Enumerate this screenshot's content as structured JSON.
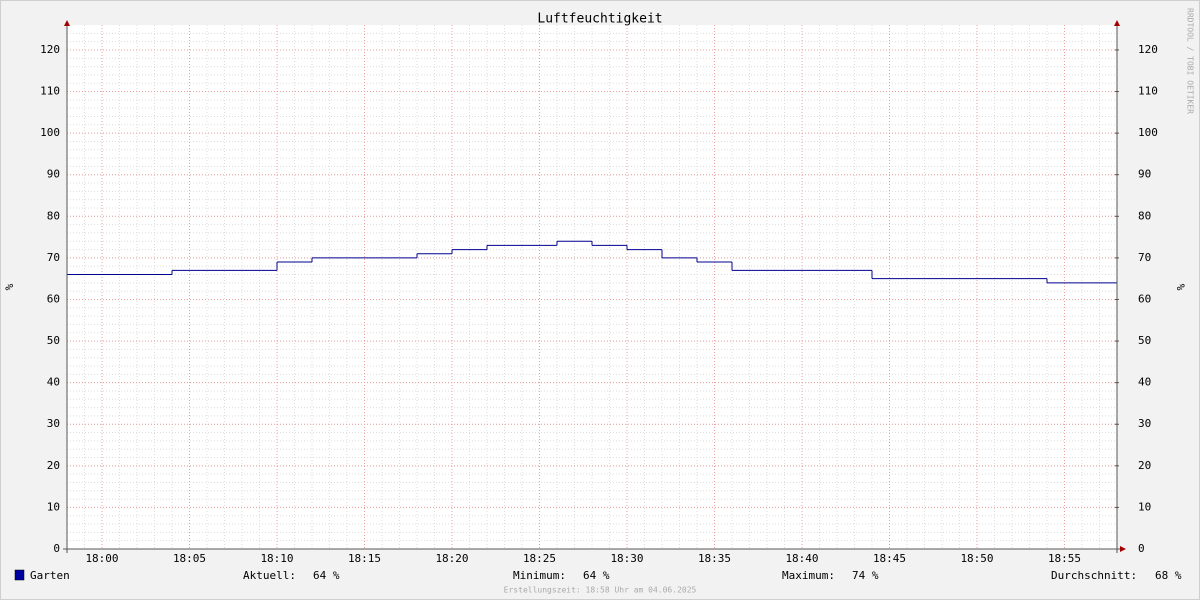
{
  "chart_data": {
    "type": "step",
    "title": "Luftfeuchtigkeit",
    "y_label": "%",
    "y2_label": "%",
    "watermark": "RRDTOOL / TOBI OETIKER",
    "footer": "Erstellungszeit: 18:58 Uhr am 04.06.2025",
    "xlim": [
      "17:58",
      "18:58"
    ],
    "xticks": [
      "18:00",
      "18:05",
      "18:10",
      "18:15",
      "18:20",
      "18:25",
      "18:30",
      "18:35",
      "18:40",
      "18:45",
      "18:50",
      "18:55"
    ],
    "ylim": [
      0,
      126
    ],
    "yticks": [
      0,
      10,
      20,
      30,
      40,
      50,
      60,
      70,
      80,
      90,
      100,
      110,
      120
    ],
    "y2lim": [
      0,
      126
    ],
    "y2ticks": [
      0,
      10,
      20,
      30,
      40,
      50,
      60,
      70,
      80,
      90,
      100,
      110,
      120
    ],
    "grid": true,
    "minor_grid": {
      "x_minutes": 1,
      "y": 2
    },
    "x": [
      "17:58",
      "18:04",
      "18:10",
      "18:12",
      "18:18",
      "18:20",
      "18:22",
      "18:26",
      "18:28",
      "18:30",
      "18:32",
      "18:34",
      "18:36",
      "18:44",
      "18:54"
    ],
    "series": [
      {
        "name": "Garten",
        "color": "#000090",
        "legend_color": "#0000a0",
        "values": [
          66,
          67,
          69,
          70,
          71,
          72,
          73,
          74,
          73,
          72,
          70,
          69,
          67,
          65,
          64
        ]
      }
    ],
    "stats": [
      {
        "label": "Aktuell:",
        "value": "64 %"
      },
      {
        "label": "Minimum:",
        "value": "64 %"
      },
      {
        "label": "Maximum:",
        "value": "74 %"
      },
      {
        "label": "Durchschnitt:",
        "value": "68 %"
      }
    ]
  }
}
